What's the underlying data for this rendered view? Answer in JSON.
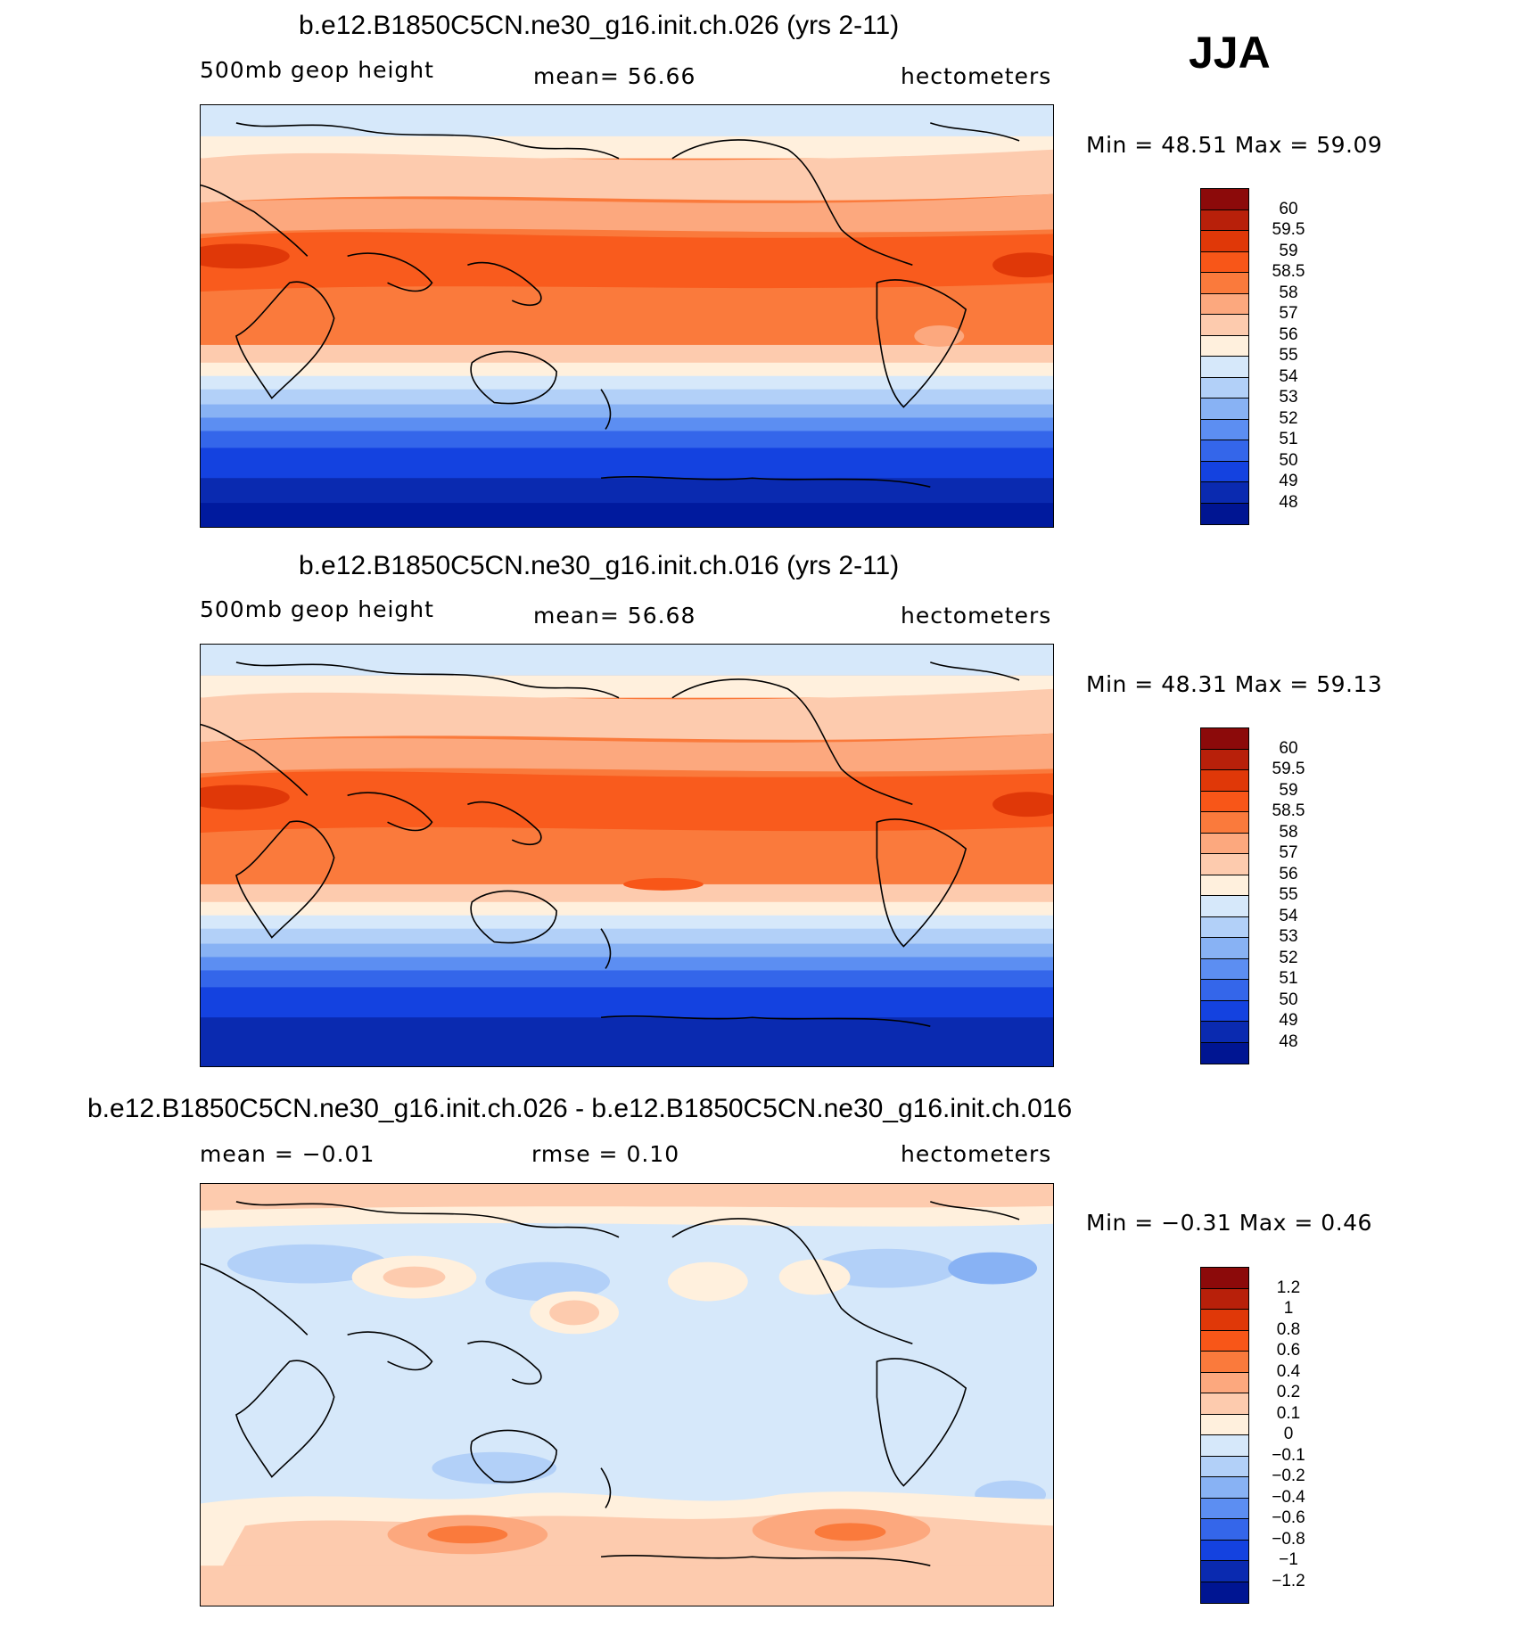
{
  "season": "JJA",
  "panels": [
    {
      "title": "b.e12.B1850C5CN.ne30_g16.init.ch.026 (yrs 2-11)",
      "left_label": "500mb  geop  height",
      "center_label": "mean=   56.66",
      "units": "hectometers",
      "minmax": "Min  =    48.51  Max  =    59.09"
    },
    {
      "title": "b.e12.B1850C5CN.ne30_g16.init.ch.016 (yrs 2-11)",
      "left_label": "500mb  geop  height",
      "center_label": "mean=   56.68",
      "units": "hectometers",
      "minmax": "Min  =    48.31  Max  =    59.13"
    },
    {
      "title": "b.e12.B1850C5CN.ne30_g16.init.ch.026 - b.e12.B1850C5CN.ne30_g16.init.ch.016",
      "left_label": "mean  =   −0.01",
      "center_label": "rmse  =    0.10",
      "units": "hectometers",
      "minmax": "Min  =   −0.31  Max  =    0.46"
    }
  ],
  "colorbars": {
    "height": {
      "labels": [
        "60",
        "59.5",
        "59",
        "58.5",
        "58",
        "57",
        "56",
        "55",
        "54",
        "53",
        "52",
        "51",
        "50",
        "49",
        "48"
      ],
      "colors": [
        "#8c0a0a",
        "#b8200a",
        "#e03808",
        "#f85618",
        "#fa7a3c",
        "#fca87e",
        "#fdcbae",
        "#fff0dd",
        "#d6e8fa",
        "#b2d0f8",
        "#88b2f4",
        "#5c8ef2",
        "#3466ea",
        "#1442e0",
        "#0a2ab0",
        "#001592"
      ]
    },
    "diff": {
      "labels": [
        "1.2",
        "1",
        "0.8",
        "0.6",
        "0.4",
        "0.2",
        "0.1",
        "0",
        "−0.1",
        "−0.2",
        "−0.4",
        "−0.6",
        "−0.8",
        "−1",
        "−1.2"
      ],
      "colors": [
        "#8c0a0a",
        "#b8200a",
        "#e03808",
        "#f85618",
        "#fa7a3c",
        "#fca87e",
        "#fdcbae",
        "#fff0dd",
        "#d6e8fa",
        "#b2d0f8",
        "#88b2f4",
        "#5c8ef2",
        "#3466ea",
        "#1442e0",
        "#0a2ab0",
        "#001592"
      ]
    }
  }
}
